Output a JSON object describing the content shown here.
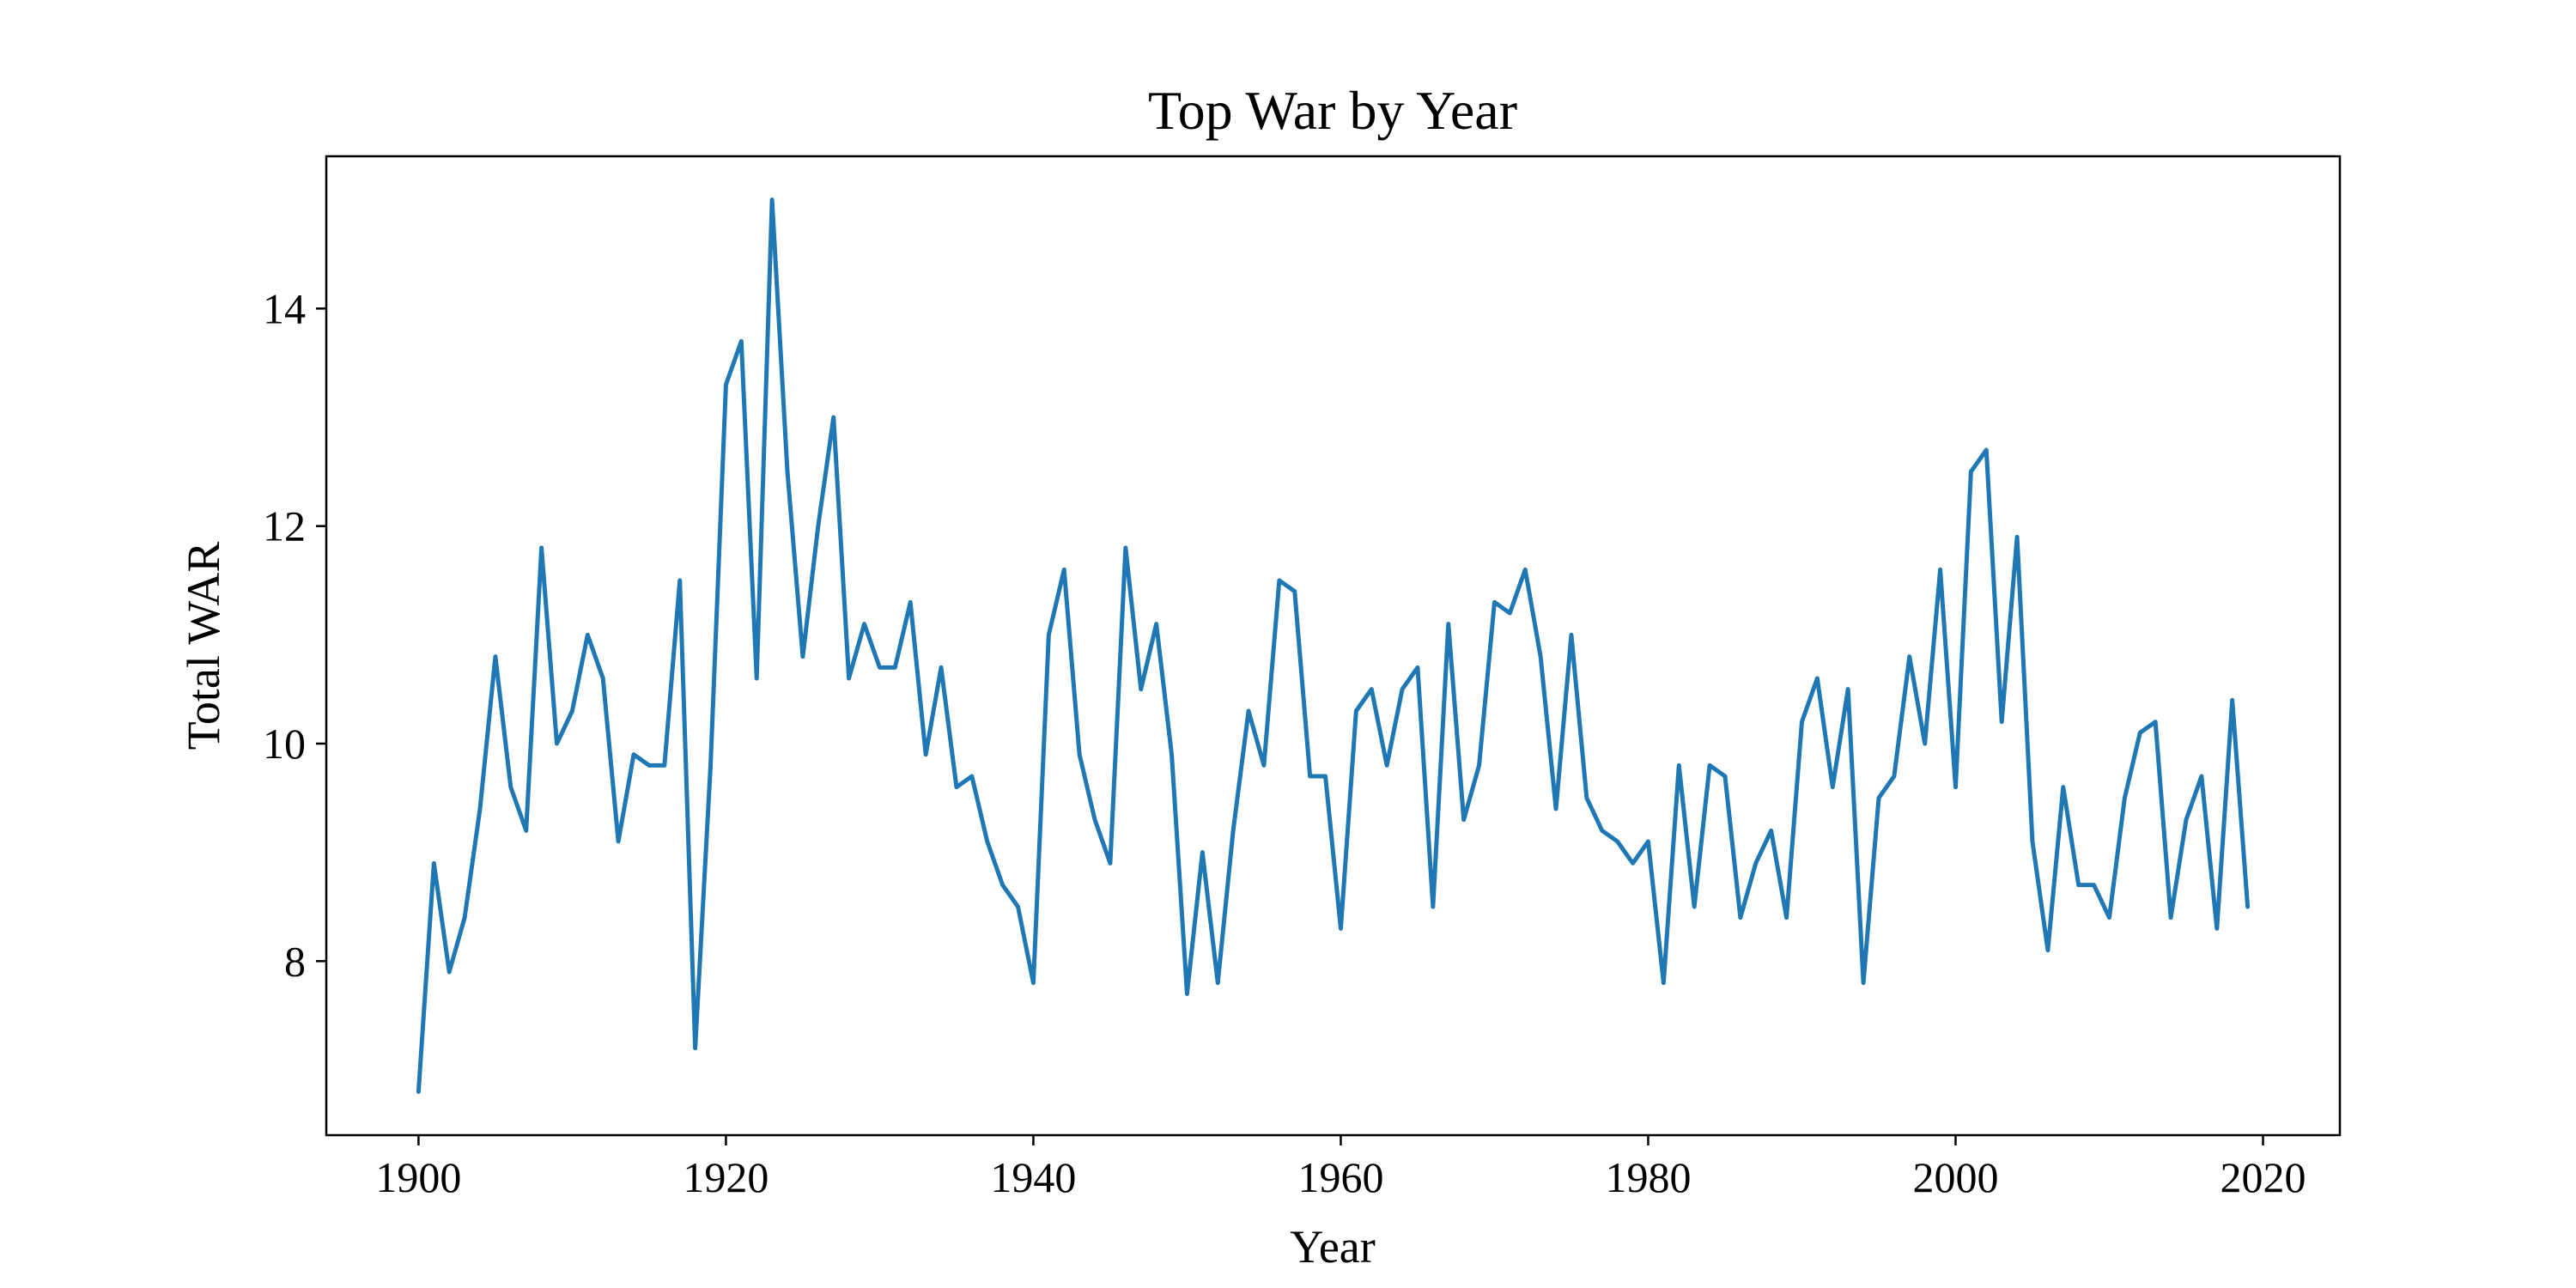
{
  "chart_data": {
    "type": "line",
    "title": "Top War by Year",
    "xlabel": "Year",
    "ylabel": "Total WAR",
    "xlim": [
      1894,
      2025
    ],
    "ylim": [
      6.4,
      15.4
    ],
    "x_ticks": [
      1900,
      1920,
      1940,
      1960,
      1980,
      2000,
      2020
    ],
    "y_ticks": [
      8,
      10,
      12,
      14
    ],
    "grid": false,
    "color": "#1f77b4",
    "x": [
      1900,
      1901,
      1902,
      1903,
      1904,
      1905,
      1906,
      1907,
      1908,
      1909,
      1910,
      1911,
      1912,
      1913,
      1914,
      1915,
      1916,
      1917,
      1918,
      1919,
      1920,
      1921,
      1922,
      1923,
      1924,
      1925,
      1926,
      1927,
      1928,
      1929,
      1930,
      1931,
      1932,
      1933,
      1934,
      1935,
      1936,
      1937,
      1938,
      1939,
      1940,
      1941,
      1942,
      1943,
      1944,
      1945,
      1946,
      1947,
      1948,
      1949,
      1950,
      1951,
      1952,
      1953,
      1954,
      1955,
      1956,
      1957,
      1958,
      1959,
      1960,
      1961,
      1962,
      1963,
      1964,
      1965,
      1966,
      1967,
      1968,
      1969,
      1970,
      1971,
      1972,
      1973,
      1974,
      1975,
      1976,
      1977,
      1978,
      1979,
      1980,
      1981,
      1982,
      1983,
      1984,
      1985,
      1986,
      1987,
      1988,
      1989,
      1990,
      1991,
      1992,
      1993,
      1994,
      1995,
      1996,
      1997,
      1998,
      1999,
      2000,
      2001,
      2002,
      2003,
      2004,
      2005,
      2006,
      2007,
      2008,
      2009,
      2010,
      2011,
      2012,
      2013,
      2014,
      2015,
      2016,
      2017,
      2018,
      2019
    ],
    "y": [
      6.8,
      8.9,
      7.9,
      8.4,
      9.4,
      10.8,
      9.6,
      9.2,
      11.8,
      10.0,
      10.3,
      11.0,
      10.6,
      9.1,
      9.9,
      9.8,
      9.8,
      11.5,
      7.2,
      9.8,
      13.3,
      13.7,
      10.6,
      15.0,
      12.5,
      10.8,
      12.0,
      13.0,
      10.6,
      11.1,
      10.7,
      10.7,
      11.3,
      9.9,
      10.7,
      9.6,
      9.7,
      9.1,
      8.7,
      8.5,
      7.8,
      11.0,
      11.6,
      9.9,
      9.3,
      8.9,
      11.8,
      10.5,
      11.1,
      9.9,
      7.7,
      9.0,
      7.8,
      9.2,
      10.3,
      9.8,
      11.5,
      11.4,
      9.7,
      9.7,
      8.3,
      10.3,
      10.5,
      9.8,
      10.5,
      10.7,
      8.5,
      11.1,
      9.3,
      9.8,
      11.3,
      11.2,
      11.6,
      10.8,
      9.4,
      11.0,
      9.5,
      9.2,
      9.1,
      8.9,
      9.1,
      7.8,
      9.8,
      8.5,
      9.8,
      9.7,
      8.4,
      8.9,
      9.2,
      8.4,
      10.2,
      10.6,
      9.6,
      10.5,
      7.8,
      9.5,
      9.7,
      10.8,
      10.0,
      11.6,
      9.6,
      12.5,
      12.7,
      10.2,
      11.9,
      9.1,
      8.1,
      9.6,
      8.7,
      8.7,
      8.4,
      9.5,
      10.1,
      10.2,
      8.4,
      9.3,
      9.7,
      8.3,
      10.4,
      8.5
    ]
  }
}
